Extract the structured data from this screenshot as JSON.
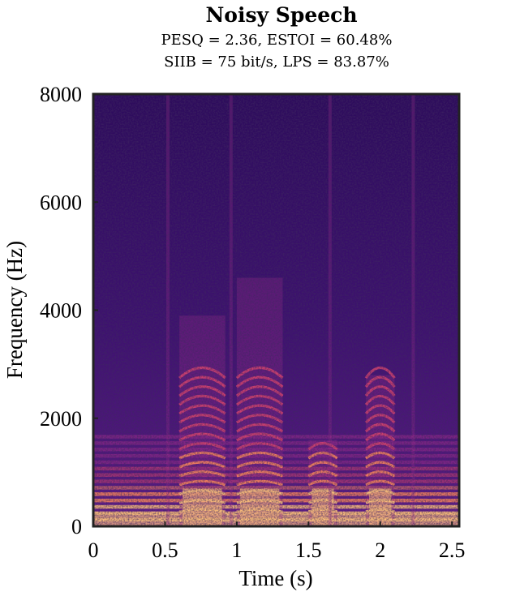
{
  "chart_data": {
    "type": "heatmap",
    "title": "Noisy Speech",
    "subtitle_lines": [
      "PESQ = 2.36, ESTOI = 60.48%",
      "SIIB = 75 bit/s, LPS = 83.87%"
    ],
    "xlabel": "Time (s)",
    "ylabel": "Frequency (Hz)",
    "xlim": [
      0,
      2.55
    ],
    "ylim": [
      0,
      8000
    ],
    "x_ticks": [
      0,
      0.5,
      1,
      1.5,
      2,
      2.5
    ],
    "x_tick_labels": [
      "0",
      "0.5",
      "1",
      "1.5",
      "2",
      "2.5"
    ],
    "y_ticks": [
      0,
      2000,
      4000,
      6000,
      8000
    ],
    "y_tick_labels": [
      "0",
      "2000",
      "4000",
      "6000",
      "8000"
    ],
    "colormap": [
      "#0d0829",
      "#3b0f70",
      "#6a1f8e",
      "#9c2e8a",
      "#d3436e",
      "#f7855c",
      "#fcc07a"
    ],
    "speech_segments": [
      {
        "start": 0.6,
        "end": 0.92,
        "top_hz": 3900
      },
      {
        "start": 1.0,
        "end": 1.32,
        "top_hz": 4600
      },
      {
        "start": 1.5,
        "end": 1.7,
        "top_hz": 1600
      },
      {
        "start": 1.9,
        "end": 2.1,
        "top_hz": 2800
      }
    ]
  }
}
